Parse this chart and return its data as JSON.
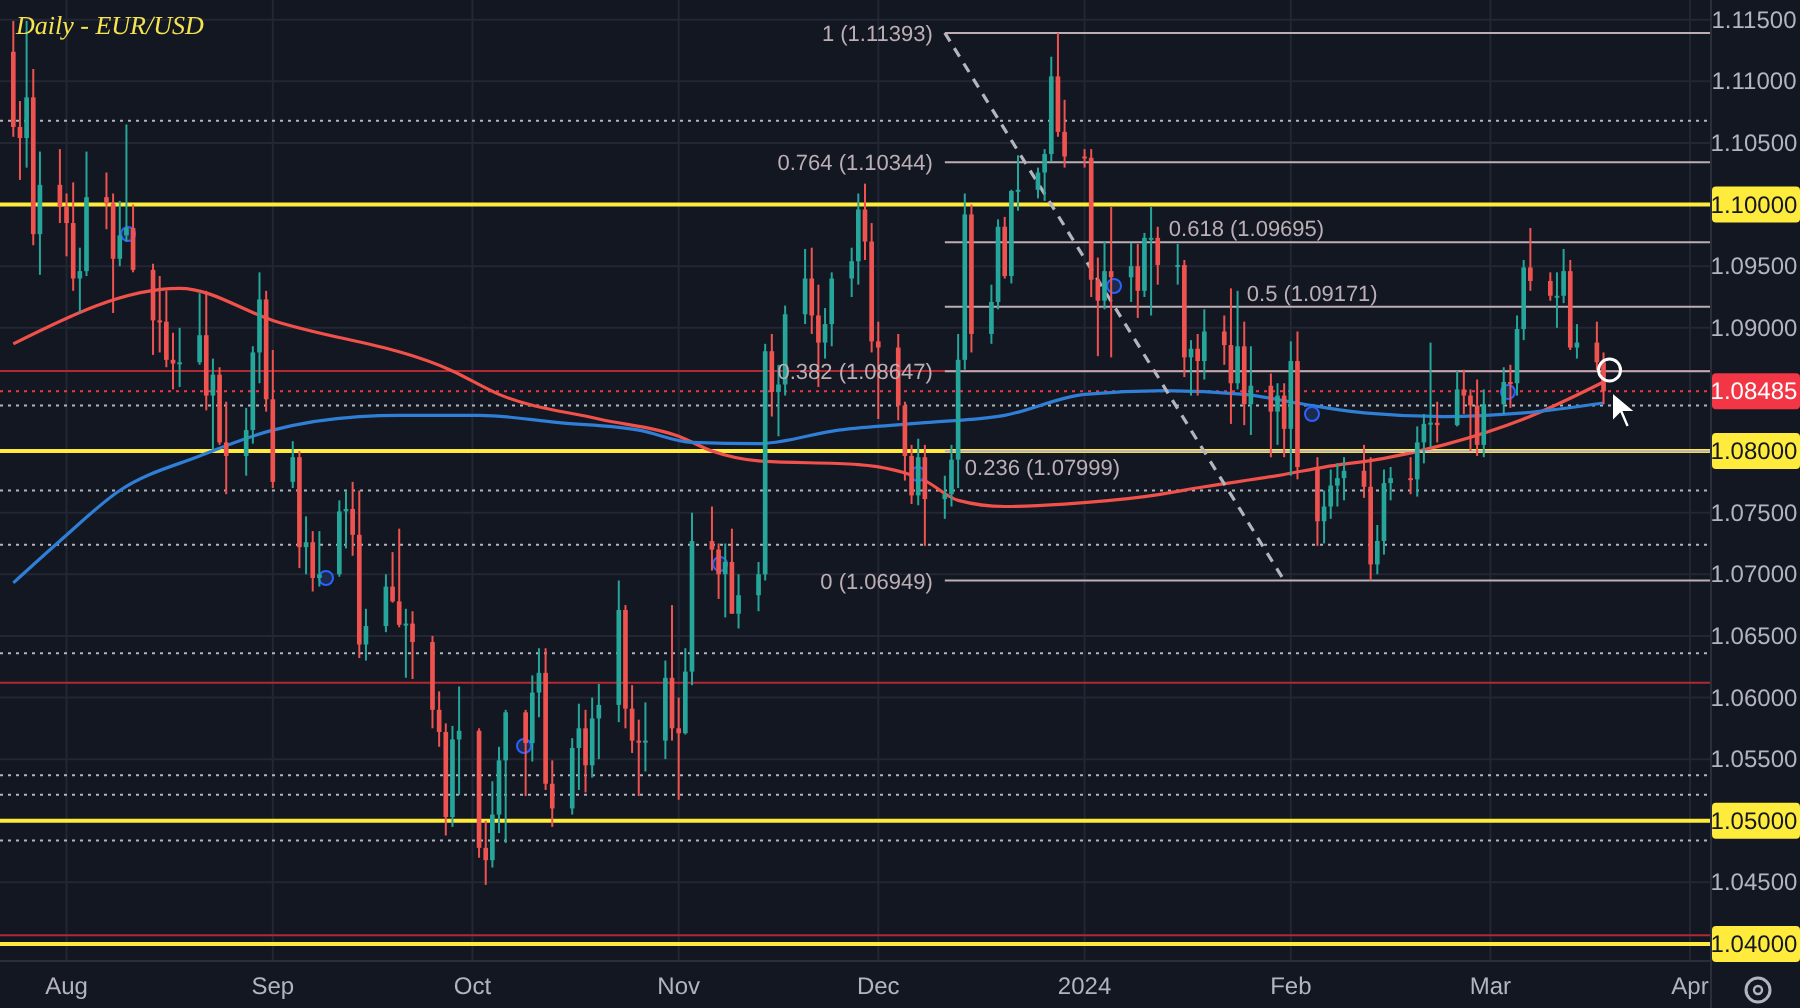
{
  "chart_data": {
    "type": "candlestick",
    "title": "Daily - EUR/USD",
    "x": [
      "2023-07-24",
      "2023-07-25",
      "2023-07-26",
      "2023-07-27",
      "2023-07-28",
      "2023-07-31",
      "2023-08-01",
      "2023-08-02",
      "2023-08-03",
      "2023-08-04",
      "2023-08-07",
      "2023-08-08",
      "2023-08-09",
      "2023-08-10",
      "2023-08-11",
      "2023-08-14",
      "2023-08-15",
      "2023-08-16",
      "2023-08-17",
      "2023-08-18",
      "2023-08-21",
      "2023-08-22",
      "2023-08-23",
      "2023-08-24",
      "2023-08-25",
      "2023-08-28",
      "2023-08-29",
      "2023-08-30",
      "2023-08-31",
      "2023-09-01",
      "2023-09-04",
      "2023-09-05",
      "2023-09-06",
      "2023-09-07",
      "2023-09-08",
      "2023-09-11",
      "2023-09-12",
      "2023-09-13",
      "2023-09-14",
      "2023-09-15",
      "2023-09-18",
      "2023-09-19",
      "2023-09-20",
      "2023-09-21",
      "2023-09-22",
      "2023-09-25",
      "2023-09-26",
      "2023-09-27",
      "2023-09-28",
      "2023-09-29",
      "2023-10-02",
      "2023-10-03",
      "2023-10-04",
      "2023-10-05",
      "2023-10-06",
      "2023-10-09",
      "2023-10-10",
      "2023-10-11",
      "2023-10-12",
      "2023-10-13",
      "2023-10-16",
      "2023-10-17",
      "2023-10-18",
      "2023-10-19",
      "2023-10-20",
      "2023-10-23",
      "2023-10-24",
      "2023-10-25",
      "2023-10-26",
      "2023-10-27",
      "2023-10-30",
      "2023-10-31",
      "2023-11-01",
      "2023-11-02",
      "2023-11-03",
      "2023-11-06",
      "2023-11-07",
      "2023-11-08",
      "2023-11-09",
      "2023-11-10",
      "2023-11-13",
      "2023-11-14",
      "2023-11-15",
      "2023-11-16",
      "2023-11-17",
      "2023-11-20",
      "2023-11-21",
      "2023-11-22",
      "2023-11-23",
      "2023-11-24",
      "2023-11-27",
      "2023-11-28",
      "2023-11-29",
      "2023-11-30",
      "2023-12-01",
      "2023-12-04",
      "2023-12-05",
      "2023-12-06",
      "2023-12-07",
      "2023-12-08",
      "2023-12-11",
      "2023-12-12",
      "2023-12-13",
      "2023-12-14",
      "2023-12-15",
      "2023-12-18",
      "2023-12-19",
      "2023-12-20",
      "2023-12-21",
      "2023-12-22",
      "2023-12-25",
      "2023-12-26",
      "2023-12-27",
      "2023-12-28",
      "2023-12-29",
      "2024-01-01",
      "2024-01-02",
      "2024-01-03",
      "2024-01-04",
      "2024-01-05",
      "2024-01-08",
      "2024-01-09",
      "2024-01-10",
      "2024-01-11",
      "2024-01-12",
      "2024-01-15",
      "2024-01-16",
      "2024-01-17",
      "2024-01-18",
      "2024-01-19",
      "2024-01-22",
      "2024-01-23",
      "2024-01-24",
      "2024-01-25",
      "2024-01-26",
      "2024-01-29",
      "2024-01-30",
      "2024-01-31",
      "2024-02-01",
      "2024-02-02",
      "2024-02-05",
      "2024-02-06",
      "2024-02-07",
      "2024-02-08",
      "2024-02-09",
      "2024-02-12",
      "2024-02-13",
      "2024-02-14",
      "2024-02-15",
      "2024-02-16",
      "2024-02-19",
      "2024-02-20",
      "2024-02-21",
      "2024-02-22",
      "2024-02-23",
      "2024-02-26",
      "2024-02-27",
      "2024-02-28",
      "2024-02-29",
      "2024-03-01",
      "2024-03-04",
      "2024-03-05",
      "2024-03-06",
      "2024-03-07",
      "2024-03-08",
      "2024-03-11",
      "2024-03-12",
      "2024-03-13",
      "2024-03-14",
      "2024-03-15",
      "2024-03-18",
      "2024-03-19"
    ],
    "ohlc": [
      [
        1.1124,
        1.1149,
        1.1055,
        1.1063
      ],
      [
        1.1063,
        1.1084,
        1.102,
        1.1054
      ],
      [
        1.1054,
        1.1149,
        1.103,
        1.1087
      ],
      [
        1.1087,
        1.111,
        1.0967,
        1.0976
      ],
      [
        1.0976,
        1.1043,
        1.0943,
        1.1016
      ],
      [
        1.1016,
        1.1045,
        1.0985,
        1.0998
      ],
      [
        1.0998,
        1.1009,
        1.0958,
        1.0985
      ],
      [
        1.0985,
        1.1018,
        1.093,
        1.094
      ],
      [
        1.094,
        1.0965,
        1.0912,
        1.0946
      ],
      [
        1.0946,
        1.1043,
        1.0942,
        1.1006
      ],
      [
        1.1006,
        1.1026,
        1.098,
        1.1001
      ],
      [
        1.1001,
        1.1009,
        1.0912,
        1.0956
      ],
      [
        1.0956,
        1.1003,
        1.095,
        1.0975
      ],
      [
        1.0975,
        1.1065,
        1.097,
        1.0981
      ],
      [
        1.0981,
        1.1,
        1.0945,
        1.0947
      ],
      [
        1.0947,
        1.0952,
        1.0878,
        1.0906
      ],
      [
        1.0906,
        1.0942,
        1.088,
        1.0905
      ],
      [
        1.0905,
        1.093,
        1.0868,
        1.0874
      ],
      [
        1.0874,
        1.0896,
        1.085,
        1.0871
      ],
      [
        1.0871,
        1.09,
        1.0852,
        1.0872
      ],
      [
        1.0872,
        1.0928,
        1.087,
        1.0894
      ],
      [
        1.0894,
        1.093,
        1.0833,
        1.0845
      ],
      [
        1.0845,
        1.0875,
        1.0801,
        1.0862
      ],
      [
        1.0862,
        1.0868,
        1.0805,
        1.0807
      ],
      [
        1.0807,
        1.084,
        1.0765,
        1.0796
      ],
      [
        1.0796,
        1.0835,
        1.078,
        1.0817
      ],
      [
        1.0817,
        1.0885,
        1.0806,
        1.088
      ],
      [
        1.088,
        1.0945,
        1.0855,
        1.0923
      ],
      [
        1.0923,
        1.093,
        1.0832,
        1.0842
      ],
      [
        1.0842,
        1.0882,
        1.077,
        1.0775
      ],
      [
        1.0775,
        1.0808,
        1.077,
        1.0795
      ],
      [
        1.0795,
        1.08,
        1.0705,
        1.0722
      ],
      [
        1.0722,
        1.0747,
        1.07,
        1.0726
      ],
      [
        1.0726,
        1.0735,
        1.0686,
        1.0697
      ],
      [
        1.0697,
        1.0735,
        1.069,
        1.07
      ],
      [
        1.07,
        1.076,
        1.0698,
        1.0751
      ],
      [
        1.0751,
        1.0768,
        1.0721,
        1.0753
      ],
      [
        1.0753,
        1.0775,
        1.0715,
        1.0732
      ],
      [
        1.0732,
        1.0768,
        1.0632,
        1.0643
      ],
      [
        1.0643,
        1.0672,
        1.063,
        1.0658
      ],
      [
        1.0658,
        1.07,
        1.0653,
        1.069
      ],
      [
        1.069,
        1.0718,
        1.0677,
        1.0678
      ],
      [
        1.0678,
        1.0737,
        1.0657,
        1.0659
      ],
      [
        1.0659,
        1.0672,
        1.0616,
        1.066
      ],
      [
        1.066,
        1.067,
        1.0615,
        1.0645
      ],
      [
        1.0645,
        1.065,
        1.0575,
        1.059
      ],
      [
        1.059,
        1.0605,
        1.056,
        1.0572
      ],
      [
        1.0572,
        1.0579,
        1.0488,
        1.0503
      ],
      [
        1.0503,
        1.0577,
        1.0495,
        1.0566
      ],
      [
        1.0566,
        1.0609,
        1.0521,
        1.0573
      ],
      [
        1.0573,
        1.0575,
        1.047,
        1.0478
      ],
      [
        1.0478,
        1.05,
        1.0448,
        1.0468
      ],
      [
        1.0468,
        1.0532,
        1.0462,
        1.0505
      ],
      [
        1.0505,
        1.056,
        1.049,
        1.0549
      ],
      [
        1.0549,
        1.059,
        1.0482,
        1.0588
      ],
      [
        1.0588,
        1.059,
        1.052,
        1.0563
      ],
      [
        1.0563,
        1.0618,
        1.0548,
        1.0604
      ],
      [
        1.0604,
        1.064,
        1.0584,
        1.062
      ],
      [
        1.062,
        1.064,
        1.0525,
        1.053
      ],
      [
        1.053,
        1.0549,
        1.0495,
        1.051
      ],
      [
        1.051,
        1.0567,
        1.0505,
        1.0559
      ],
      [
        1.0559,
        1.0595,
        1.0525,
        1.0575
      ],
      [
        1.0575,
        1.059,
        1.0523,
        1.0545
      ],
      [
        1.0545,
        1.06,
        1.0535,
        1.0583
      ],
      [
        1.0583,
        1.0611,
        1.055,
        1.0594
      ],
      [
        1.0594,
        1.0695,
        1.058,
        1.0671
      ],
      [
        1.0671,
        1.0675,
        1.0575,
        1.0591
      ],
      [
        1.0591,
        1.061,
        1.0555,
        1.0565
      ],
      [
        1.0565,
        1.0582,
        1.052,
        1.0564
      ],
      [
        1.0564,
        1.0596,
        1.054,
        1.0565
      ],
      [
        1.0565,
        1.063,
        1.055,
        1.0616
      ],
      [
        1.0616,
        1.0675,
        1.0565,
        1.0575
      ],
      [
        1.0575,
        1.06,
        1.0517,
        1.0571
      ],
      [
        1.0571,
        1.064,
        1.057,
        1.0621
      ],
      [
        1.0621,
        1.075,
        1.061,
        1.0727
      ],
      [
        1.0727,
        1.0755,
        1.0703,
        1.072
      ],
      [
        1.072,
        1.0725,
        1.068,
        1.07
      ],
      [
        1.07,
        1.0725,
        1.0665,
        1.071
      ],
      [
        1.071,
        1.0737,
        1.0668,
        1.0668
      ],
      [
        1.0668,
        1.07,
        1.0656,
        1.0683
      ],
      [
        1.0683,
        1.071,
        1.067,
        1.07
      ],
      [
        1.07,
        1.0887,
        1.0695,
        1.0881
      ],
      [
        1.0881,
        1.0895,
        1.0828,
        1.0848
      ],
      [
        1.0848,
        1.087,
        1.0812,
        1.0854
      ],
      [
        1.0854,
        1.0918,
        1.0845,
        1.0911
      ],
      [
        1.0911,
        1.0964,
        1.0903,
        1.094
      ],
      [
        1.094,
        1.0965,
        1.0895,
        1.091
      ],
      [
        1.091,
        1.0935,
        1.0852,
        1.0888
      ],
      [
        1.0888,
        1.0916,
        1.0875,
        1.0903
      ],
      [
        1.0903,
        1.0945,
        1.0885,
        1.094
      ],
      [
        1.094,
        1.0965,
        1.0925,
        1.0954
      ],
      [
        1.0954,
        1.1009,
        1.0935,
        1.0996
      ],
      [
        1.0996,
        1.1017,
        1.0955,
        1.097
      ],
      [
        1.097,
        1.0985,
        1.088,
        1.0889
      ],
      [
        1.0889,
        1.0905,
        1.0826,
        1.0884
      ],
      [
        1.0884,
        1.0895,
        1.0825,
        1.0837
      ],
      [
        1.0837,
        1.084,
        1.0776,
        1.0796
      ],
      [
        1.0796,
        1.0805,
        1.0757,
        1.0764
      ],
      [
        1.0764,
        1.081,
        1.0756,
        1.0795
      ],
      [
        1.0795,
        1.0805,
        1.0723,
        1.0761
      ],
      [
        1.0761,
        1.078,
        1.0745,
        1.0765
      ],
      [
        1.0765,
        1.0805,
        1.0755,
        1.0793
      ],
      [
        1.0793,
        1.0895,
        1.077,
        1.0874
      ],
      [
        1.0874,
        1.1009,
        1.0866,
        1.0992
      ],
      [
        1.0992,
        1.1,
        1.088,
        1.0895
      ],
      [
        1.0895,
        1.0935,
        1.0887,
        1.0921
      ],
      [
        1.0921,
        1.0988,
        1.0915,
        1.0982
      ],
      [
        1.0982,
        1.099,
        1.094,
        1.0942
      ],
      [
        1.0942,
        1.1012,
        1.0936,
        1.1011
      ],
      [
        1.1011,
        1.104,
        1.0995,
        1.1012
      ],
      [
        1.1012,
        1.103,
        1.1005,
        1.1026
      ],
      [
        1.1026,
        1.1045,
        1.1003,
        1.1041
      ],
      [
        1.1041,
        1.112,
        1.1035,
        1.1104
      ],
      [
        1.1104,
        1.11393,
        1.1055,
        1.1059
      ],
      [
        1.1059,
        1.1085,
        1.103,
        1.1039
      ],
      [
        1.1039,
        1.1045,
        1.103,
        1.1038
      ],
      [
        1.1038,
        1.1045,
        1.0925,
        1.0939
      ],
      [
        1.0939,
        1.0957,
        1.0877,
        1.0922
      ],
      [
        1.0922,
        1.097,
        1.0915,
        1.0946
      ],
      [
        1.0946,
        1.0998,
        1.0876,
        1.0941
      ],
      [
        1.0941,
        1.0969,
        1.0921,
        1.095
      ],
      [
        1.095,
        1.0968,
        1.0908,
        1.093
      ],
      [
        1.093,
        1.0977,
        1.0925,
        1.0973
      ],
      [
        1.0973,
        1.0998,
        1.091,
        1.0973
      ],
      [
        1.0973,
        1.0982,
        1.0935,
        1.0951
      ],
      [
        1.0951,
        1.0968,
        1.0935,
        1.0951
      ],
      [
        1.0951,
        1.0955,
        1.086,
        1.0876
      ],
      [
        1.0876,
        1.089,
        1.0845,
        1.0883
      ],
      [
        1.0883,
        1.0895,
        1.0845,
        1.0873
      ],
      [
        1.0873,
        1.0915,
        1.0858,
        1.0897
      ],
      [
        1.0897,
        1.091,
        1.087,
        1.0886
      ],
      [
        1.0886,
        1.0932,
        1.0822,
        1.0855
      ],
      [
        1.0855,
        1.093,
        1.085,
        1.0885
      ],
      [
        1.0885,
        1.0905,
        1.0821,
        1.0838
      ],
      [
        1.0838,
        1.0885,
        1.0813,
        1.0853
      ],
      [
        1.0853,
        1.0863,
        1.0795,
        1.0832
      ],
      [
        1.0832,
        1.0855,
        1.0805,
        1.0845
      ],
      [
        1.0845,
        1.0855,
        1.0795,
        1.0818
      ],
      [
        1.0818,
        1.0889,
        1.078,
        1.0873
      ],
      [
        1.0873,
        1.0897,
        1.0777,
        1.0787
      ],
      [
        1.0787,
        1.0795,
        1.0723,
        1.0743
      ],
      [
        1.0743,
        1.0768,
        1.0725,
        1.0755
      ],
      [
        1.0755,
        1.0785,
        1.0745,
        1.0772
      ],
      [
        1.0772,
        1.079,
        1.0755,
        1.0778
      ],
      [
        1.0778,
        1.0795,
        1.076,
        1.0784
      ],
      [
        1.0784,
        1.0805,
        1.0762,
        1.0771
      ],
      [
        1.0771,
        1.0795,
        1.0695,
        1.0708
      ],
      [
        1.0708,
        1.074,
        1.07,
        1.0727
      ],
      [
        1.0727,
        1.0785,
        1.0716,
        1.0774
      ],
      [
        1.0774,
        1.0787,
        1.076,
        1.0778
      ],
      [
        1.0778,
        1.0795,
        1.0765,
        1.0777
      ],
      [
        1.0777,
        1.082,
        1.0763,
        1.0807
      ],
      [
        1.0807,
        1.083,
        1.079,
        1.0822
      ],
      [
        1.0822,
        1.0888,
        1.0803,
        1.0823
      ],
      [
        1.0823,
        1.084,
        1.0807,
        1.0821
      ],
      [
        1.0821,
        1.0865,
        1.082,
        1.085
      ],
      [
        1.085,
        1.0866,
        1.083,
        1.0845
      ],
      [
        1.0845,
        1.085,
        1.08,
        1.0837
      ],
      [
        1.0837,
        1.0858,
        1.0796,
        1.0805
      ],
      [
        1.0805,
        1.085,
        1.0795,
        1.0838
      ],
      [
        1.0838,
        1.0868,
        1.083,
        1.0856
      ],
      [
        1.0856,
        1.087,
        1.0835,
        1.0855
      ],
      [
        1.0855,
        1.091,
        1.0845,
        1.0899
      ],
      [
        1.0899,
        1.0955,
        1.089,
        1.0949
      ],
      [
        1.0949,
        1.0981,
        1.093,
        1.0938
      ],
      [
        1.0938,
        1.0945,
        1.0922,
        1.0926
      ],
      [
        1.0926,
        1.0945,
        1.09,
        1.0926
      ],
      [
        1.0926,
        1.0964,
        1.092,
        1.0946
      ],
      [
        1.0946,
        1.0955,
        1.0882,
        1.0884
      ],
      [
        1.0884,
        1.0903,
        1.0875,
        1.0888
      ],
      [
        1.0888,
        1.0905,
        1.0865,
        1.0872
      ],
      [
        1.0872,
        1.088,
        1.0838,
        1.08485
      ]
    ],
    "series": [
      {
        "type": "line",
        "color": "#f0514a",
        "line_style": "solid",
        "x": [
          "2023-07-24",
          "2023-08-18",
          "2023-09-01",
          "2023-09-28",
          "2023-10-05",
          "2023-10-20",
          "2023-11-01",
          "2023-11-06",
          "2023-11-13",
          "2023-11-28",
          "2023-12-08",
          "2023-12-13",
          "2023-12-20",
          "2023-12-29",
          "2024-01-10",
          "2024-01-19",
          "2024-01-31",
          "2024-02-06",
          "2024-02-15",
          "2024-02-24",
          "2024-03-07",
          "2024-03-19"
        ],
        "values": [
          1.0887,
          1.0932,
          1.0906,
          1.0865,
          1.0846,
          1.0826,
          1.0812,
          1.08,
          1.0792,
          1.0789,
          1.0776,
          1.076,
          1.0755,
          1.0757,
          1.0763,
          1.0771,
          1.0781,
          1.0787,
          1.0794,
          1.0805,
          1.0826,
          1.0856
        ]
      },
      {
        "type": "line",
        "color": "#2f7fd6",
        "line_style": "solid",
        "x": [
          "2023-07-24",
          "2023-07-31",
          "2023-08-09",
          "2023-08-21",
          "2023-09-01",
          "2023-09-14",
          "2023-09-20",
          "2023-10-02",
          "2023-10-14",
          "2023-10-26",
          "2023-11-03",
          "2023-11-13",
          "2023-11-25",
          "2023-12-08",
          "2023-12-20",
          "2024-01-01",
          "2024-01-13",
          "2024-01-25",
          "2024-02-03",
          "2024-02-12",
          "2024-02-24",
          "2024-03-07",
          "2024-03-19"
        ],
        "values": [
          1.0693,
          1.0727,
          1.0768,
          1.0796,
          1.0817,
          1.0828,
          1.0829,
          1.0829,
          1.0823,
          1.0817,
          1.0807,
          1.0806,
          1.0817,
          1.0823,
          1.0829,
          1.0846,
          1.0849,
          1.0846,
          1.0838,
          1.0831,
          1.0828,
          1.0831,
          1.0839
        ]
      },
      {
        "type": "line",
        "color": "#b2b5be",
        "line_style": "dashed",
        "x": [
          "2023-12-11",
          "2024-01-31"
        ],
        "values": [
          1.11393,
          1.06949
        ]
      },
      {
        "type": "line",
        "name": "1 (1.11393)",
        "color": "#bcaeb5",
        "line_style": "solid",
        "x": [
          "2023-12-11",
          "2024-04-04"
        ],
        "values": [
          1.11393,
          1.11393
        ]
      },
      {
        "type": "line",
        "name": "0.764 (1.10344)",
        "color": "#bcaeb5",
        "line_style": "solid",
        "x": [
          "2023-12-11",
          "2024-04-04"
        ],
        "values": [
          1.10344,
          1.10344
        ]
      },
      {
        "type": "line",
        "name": "0.618 (1.09695)",
        "color": "#bcaeb5",
        "line_style": "solid",
        "x": [
          "2023-12-11",
          "2024-04-04"
        ],
        "values": [
          1.09695,
          1.09695
        ]
      },
      {
        "type": "line",
        "name": "0.5 (1.09171)",
        "color": "#bcaeb5",
        "line_style": "solid",
        "x": [
          "2023-12-11",
          "2024-04-04"
        ],
        "values": [
          1.09171,
          1.09171
        ]
      },
      {
        "type": "line",
        "name": "0.382 (1.08647)",
        "color": "#bcaeb5",
        "line_style": "solid",
        "x": [
          "2023-12-11",
          "2024-04-04"
        ],
        "values": [
          1.08647,
          1.08647
        ]
      },
      {
        "type": "line",
        "name": "0.236 (1.07999)",
        "color": "#bcaeb5",
        "line_style": "solid",
        "x": [
          "2023-12-11",
          "2024-04-04"
        ],
        "values": [
          1.07999,
          1.07999
        ]
      },
      {
        "type": "line",
        "name": "0 (1.06949)",
        "color": "#bcaeb5",
        "line_style": "solid",
        "x": [
          "2023-12-11",
          "2024-04-04"
        ],
        "values": [
          1.06949,
          1.06949
        ]
      }
    ],
    "ref_lines": [
      {
        "axis": "y",
        "value": 1.1068,
        "color": "#b2b5be",
        "line_style": "dotted"
      },
      {
        "axis": "y",
        "value": 1.0837,
        "color": "#b2b5be",
        "line_style": "dotted"
      },
      {
        "axis": "y",
        "value": 1.0768,
        "color": "#b2b5be",
        "line_style": "dotted"
      },
      {
        "axis": "y",
        "value": 1.0724,
        "color": "#b2b5be",
        "line_style": "dotted"
      },
      {
        "axis": "y",
        "value": 1.0636,
        "color": "#b2b5be",
        "line_style": "dotted"
      },
      {
        "axis": "y",
        "value": 1.0537,
        "color": "#b2b5be",
        "line_style": "dotted"
      },
      {
        "axis": "y",
        "value": 1.0521,
        "color": "#b2b5be",
        "line_style": "dotted"
      },
      {
        "axis": "y",
        "value": 1.0484,
        "color": "#b2b5be",
        "line_style": "dotted"
      },
      {
        "axis": "y",
        "value": 1.0865,
        "color": "#b22833",
        "line_style": "solid"
      },
      {
        "axis": "y",
        "value": 1.0612,
        "color": "#b22833",
        "line_style": "solid"
      },
      {
        "axis": "y",
        "value": 1.0407,
        "color": "#b22833",
        "line_style": "solid"
      },
      {
        "axis": "y",
        "value": 1.1,
        "label": "1.10000",
        "color": "#ffeb3b",
        "line_style": "solid"
      },
      {
        "axis": "y",
        "value": 1.08,
        "label": "1.08000",
        "color": "#ffeb3b",
        "line_style": "solid"
      },
      {
        "axis": "y",
        "value": 1.05,
        "label": "1.05000",
        "color": "#ffeb3b",
        "line_style": "solid"
      },
      {
        "axis": "y",
        "value": 1.04,
        "label": "1.04000",
        "color": "#ffeb3b",
        "line_style": "solid"
      },
      {
        "axis": "y",
        "value": 1.08485,
        "label": "1.08485",
        "color": "#f23645",
        "line_style": "dotted"
      }
    ],
    "xlim": [
      "2023-07-22",
      "2024-04-04"
    ],
    "xticks": [
      {
        "value": "2023-08-01",
        "label": "Aug"
      },
      {
        "value": "2023-09-01",
        "label": "Sep"
      },
      {
        "value": "2023-10-01",
        "label": "Oct"
      },
      {
        "value": "2023-11-01",
        "label": "Nov"
      },
      {
        "value": "2023-12-01",
        "label": "Dec"
      },
      {
        "value": "2024-01-01",
        "label": "2024"
      },
      {
        "value": "2024-02-01",
        "label": "Feb"
      },
      {
        "value": "2024-03-02",
        "label": "Mar"
      },
      {
        "value": "2024-04-01",
        "label": "Apr"
      }
    ],
    "ylim": [
      1.0387,
      1.1166
    ],
    "yticks": [
      {
        "value": 1.045,
        "label": "1.04500"
      },
      {
        "value": 1.055,
        "label": "1.05500"
      },
      {
        "value": 1.06,
        "label": "1.06000"
      },
      {
        "value": 1.065,
        "label": "1.06500"
      },
      {
        "value": 1.07,
        "label": "1.07000"
      },
      {
        "value": 1.075,
        "label": "1.07500"
      },
      {
        "value": 1.09,
        "label": "1.09000"
      },
      {
        "value": 1.095,
        "label": "1.09500"
      },
      {
        "value": 1.105,
        "label": "1.10500"
      },
      {
        "value": 1.11,
        "label": "1.11000"
      },
      {
        "value": 1.115,
        "label": "1.11500"
      }
    ],
    "grid": true
  }
}
